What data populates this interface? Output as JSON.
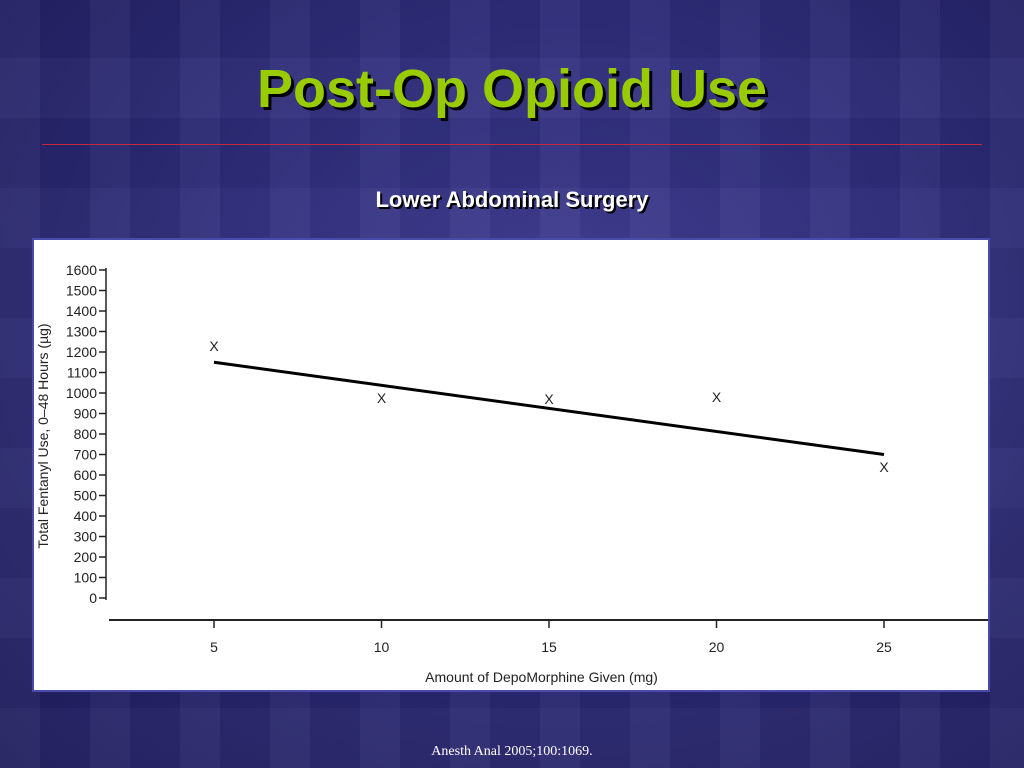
{
  "slide": {
    "title": "Post-Op Opioid Use",
    "subtitle": "Lower Abdominal Surgery",
    "source": "Anesth Anal 2005;100:1069.",
    "title_color": "#99cc00",
    "rule_color": "#c8263a"
  },
  "chart_data": {
    "type": "scatter",
    "xlabel": "Amount of DepoMorphine Given (mg)",
    "ylabel": "Total Fentanyl Use, 0–48 Hours (µg)",
    "x_ticks": [
      5,
      10,
      15,
      20,
      25
    ],
    "y_ticks": [
      0,
      100,
      200,
      300,
      400,
      500,
      600,
      700,
      800,
      900,
      1000,
      1100,
      1200,
      1300,
      1400,
      1500,
      1600
    ],
    "xlim": [
      2,
      28
    ],
    "ylim": [
      0,
      1600
    ],
    "points": [
      {
        "x": 5,
        "y": 1230
      },
      {
        "x": 10,
        "y": 975
      },
      {
        "x": 15,
        "y": 970
      },
      {
        "x": 20,
        "y": 980
      },
      {
        "x": 25,
        "y": 640
      }
    ],
    "marker": "X",
    "trend_line": {
      "x": [
        5,
        25
      ],
      "y": [
        1150,
        700
      ]
    },
    "grid": false,
    "legend": "none"
  }
}
